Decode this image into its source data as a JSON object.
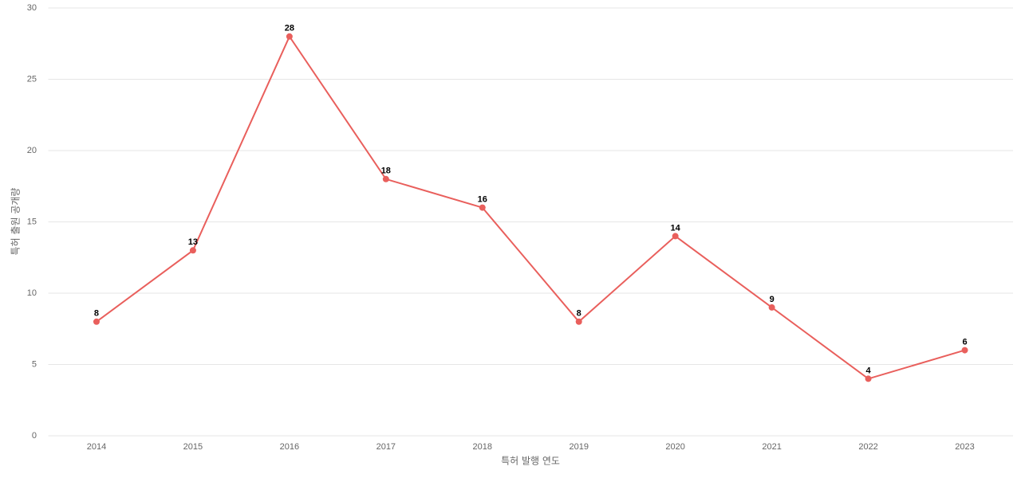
{
  "chart_data": {
    "type": "line",
    "x_label": "특허 발행 연도",
    "y_label": "특허 출원 공개량",
    "categories": [
      "2014",
      "2015",
      "2016",
      "2017",
      "2018",
      "2019",
      "2020",
      "2021",
      "2022",
      "2023"
    ],
    "series": [
      {
        "color": "#e95f5c",
        "values": [
          8,
          13,
          28,
          18,
          16,
          8,
          14,
          9,
          4,
          6
        ]
      }
    ],
    "ylim": [
      0,
      30
    ],
    "yticks": [
      0,
      5,
      10,
      15,
      20,
      25,
      30
    ],
    "grid": true
  }
}
